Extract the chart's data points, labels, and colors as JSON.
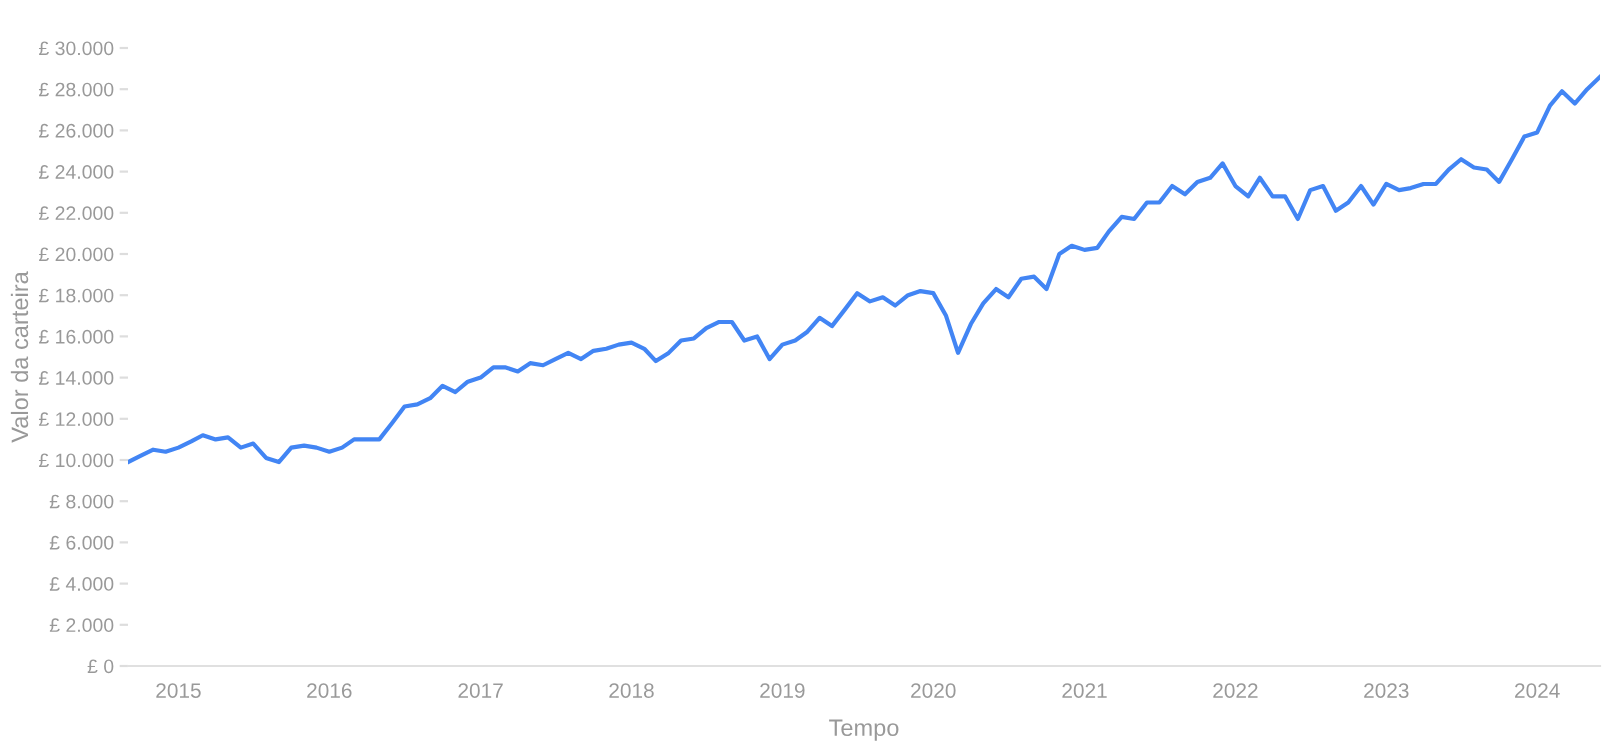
{
  "chart_data": {
    "type": "line",
    "xlabel": "Tempo",
    "ylabel": "Valor da carteira",
    "x": [
      "2014-09",
      "2014-10",
      "2014-11",
      "2014-12",
      "2015-01",
      "2015-02",
      "2015-03",
      "2015-04",
      "2015-05",
      "2015-06",
      "2015-07",
      "2015-08",
      "2015-09",
      "2015-10",
      "2015-11",
      "2015-12",
      "2016-01",
      "2016-02",
      "2016-03",
      "2016-04",
      "2016-05",
      "2016-06",
      "2016-07",
      "2016-08",
      "2016-09",
      "2016-10",
      "2016-11",
      "2016-12",
      "2017-01",
      "2017-02",
      "2017-03",
      "2017-04",
      "2017-05",
      "2017-06",
      "2017-07",
      "2017-08",
      "2017-09",
      "2017-10",
      "2017-11",
      "2017-12",
      "2018-01",
      "2018-02",
      "2018-03",
      "2018-04",
      "2018-05",
      "2018-06",
      "2018-07",
      "2018-08",
      "2018-09",
      "2018-10",
      "2018-11",
      "2018-12",
      "2019-01",
      "2019-02",
      "2019-03",
      "2019-04",
      "2019-05",
      "2019-06",
      "2019-07",
      "2019-08",
      "2019-09",
      "2019-10",
      "2019-11",
      "2019-12",
      "2020-01",
      "2020-02",
      "2020-03",
      "2020-04",
      "2020-05",
      "2020-06",
      "2020-07",
      "2020-08",
      "2020-09",
      "2020-10",
      "2020-11",
      "2020-12",
      "2021-01",
      "2021-02",
      "2021-03",
      "2021-04",
      "2021-05",
      "2021-06",
      "2021-07",
      "2021-08",
      "2021-09",
      "2021-10",
      "2021-11",
      "2021-12",
      "2022-01",
      "2022-02",
      "2022-03",
      "2022-04",
      "2022-05",
      "2022-06",
      "2022-07",
      "2022-08",
      "2022-09",
      "2022-10",
      "2022-11",
      "2022-12",
      "2023-01",
      "2023-02",
      "2023-03",
      "2023-04",
      "2023-05",
      "2023-06",
      "2023-07",
      "2023-08",
      "2023-09",
      "2023-10",
      "2023-11",
      "2023-12",
      "2024-01",
      "2024-02",
      "2024-03",
      "2024-04",
      "2024-05",
      "2024-06"
    ],
    "series": [
      {
        "color": "#4285f4",
        "values": [
          9900,
          10200,
          10500,
          10400,
          10600,
          10900,
          11200,
          11000,
          11100,
          10600,
          10800,
          10100,
          9900,
          10600,
          10700,
          10600,
          10400,
          10600,
          11000,
          11000,
          11000,
          11800,
          12600,
          12700,
          13000,
          13600,
          13300,
          13800,
          14000,
          14500,
          14500,
          14300,
          14700,
          14600,
          14900,
          15200,
          14900,
          15300,
          15400,
          15600,
          15700,
          15400,
          14800,
          15200,
          15800,
          15900,
          16400,
          16700,
          16700,
          15800,
          16000,
          14900,
          15600,
          15800,
          16200,
          16900,
          16500,
          17300,
          18100,
          17700,
          17900,
          17500,
          18000,
          18200,
          18100,
          17000,
          15200,
          16600,
          17600,
          18300,
          17900,
          18800,
          18900,
          18300,
          20000,
          20400,
          20200,
          20300,
          21100,
          21800,
          21700,
          22500,
          22500,
          23300,
          22900,
          23500,
          23700,
          24400,
          23300,
          22800,
          23700,
          22800,
          22800,
          21700,
          23100,
          23300,
          22100,
          22500,
          23300,
          22400,
          23400,
          23100,
          23200,
          23400,
          23400,
          24100,
          24600,
          24200,
          24100,
          23500,
          24600,
          25700,
          25900,
          27200,
          27900,
          27300,
          28000,
          28600
        ]
      }
    ],
    "xlim": [
      "2014-09",
      "2024-06"
    ],
    "xticks": [
      {
        "value": "2015",
        "label": "2015"
      },
      {
        "value": "2016",
        "label": "2016"
      },
      {
        "value": "2017",
        "label": "2017"
      },
      {
        "value": "2018",
        "label": "2018"
      },
      {
        "value": "2019",
        "label": "2019"
      },
      {
        "value": "2020",
        "label": "2020"
      },
      {
        "value": "2021",
        "label": "2021"
      },
      {
        "value": "2022",
        "label": "2022"
      },
      {
        "value": "2023",
        "label": "2023"
      },
      {
        "value": "2024",
        "label": "2024"
      }
    ],
    "ylim": [
      0,
      30000
    ],
    "yticks": [
      {
        "value": 0,
        "label": "£ 0"
      },
      {
        "value": 2000,
        "label": "£ 2.000"
      },
      {
        "value": 4000,
        "label": "£ 4.000"
      },
      {
        "value": 6000,
        "label": "£ 6.000"
      },
      {
        "value": 8000,
        "label": "£ 8.000"
      },
      {
        "value": 10000,
        "label": "£ 10.000"
      },
      {
        "value": 12000,
        "label": "£ 12.000"
      },
      {
        "value": 14000,
        "label": "£ 14.000"
      },
      {
        "value": 16000,
        "label": "£ 16.000"
      },
      {
        "value": 18000,
        "label": "£ 18.000"
      },
      {
        "value": 20000,
        "label": "£ 20.000"
      },
      {
        "value": 22000,
        "label": "£ 22.000"
      },
      {
        "value": 24000,
        "label": "£ 24.000"
      },
      {
        "value": 26000,
        "label": "£ 26.000"
      },
      {
        "value": 28000,
        "label": "£ 28.000"
      },
      {
        "value": 30000,
        "label": "£ 30.000"
      }
    ],
    "grid": false,
    "legend": false
  }
}
